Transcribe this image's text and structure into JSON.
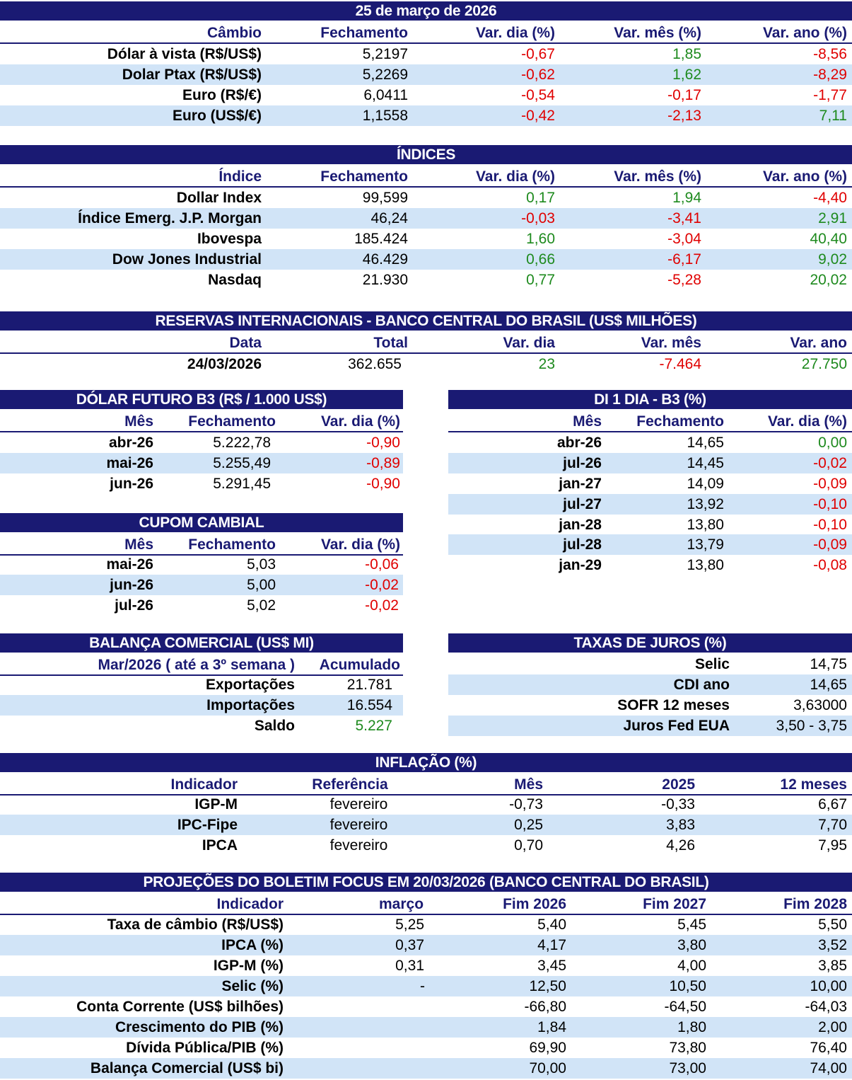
{
  "date_title": "25 de março de 2026",
  "cambio": {
    "headers": [
      "Câmbio",
      "Fechamento",
      "Var. dia (%)",
      "Var. mês (%)",
      "Var. ano (%)"
    ],
    "rows": [
      {
        "label": "Dólar à vista (R$/US$)",
        "fech": "5,2197",
        "dia": "-0,67",
        "mes": "1,85",
        "ano": "-8,56"
      },
      {
        "label": "Dolar Ptax (R$/US$)",
        "fech": "5,2269",
        "dia": "-0,62",
        "mes": "1,62",
        "ano": "-8,29"
      },
      {
        "label": "Euro (R$/€)",
        "fech": "6,0411",
        "dia": "-0,54",
        "mes": "-0,17",
        "ano": "-1,77"
      },
      {
        "label": "Euro (US$/€)",
        "fech": "1,1558",
        "dia": "-0,42",
        "mes": "-2,13",
        "ano": "7,11"
      }
    ]
  },
  "indices": {
    "title": "ÍNDICES",
    "headers": [
      "Índice",
      "Fechamento",
      "Var. dia (%)",
      "Var. mês (%)",
      "Var. ano (%)"
    ],
    "rows": [
      {
        "label": "Dollar Index",
        "fech": "99,599",
        "dia": "0,17",
        "mes": "1,94",
        "ano": "-4,40"
      },
      {
        "label": "Índice Emerg. J.P. Morgan",
        "fech": "46,24",
        "dia": "-0,03",
        "mes": "-3,41",
        "ano": "2,91"
      },
      {
        "label": "Ibovespa",
        "fech": "185.424",
        "dia": "1,60",
        "mes": "-3,04",
        "ano": "40,40"
      },
      {
        "label": "Dow Jones Industrial",
        "fech": "46.429",
        "dia": "0,66",
        "mes": "-6,17",
        "ano": "9,02"
      },
      {
        "label": "Nasdaq",
        "fech": "21.930",
        "dia": "0,77",
        "mes": "-5,28",
        "ano": "20,02"
      }
    ]
  },
  "reservas": {
    "title": "RESERVAS INTERNACIONAIS - BANCO CENTRAL DO BRASIL (US$ MILHÕES)",
    "headers": [
      "Data",
      "Total",
      "Var. dia",
      "Var. mês",
      "Var. ano"
    ],
    "row": {
      "data": "24/03/2026",
      "total": "362.655",
      "dia": "23",
      "mes": "-7.464",
      "ano": "27.750"
    }
  },
  "dolar_futuro": {
    "title": "DÓLAR FUTURO B3 (R$ / 1.000 US$)",
    "headers": [
      "Mês",
      "Fechamento",
      "Var. dia (%)"
    ],
    "rows": [
      {
        "mes": "abr-26",
        "fech": "5.222,78",
        "dia": "-0,90"
      },
      {
        "mes": "mai-26",
        "fech": "5.255,49",
        "dia": "-0,89"
      },
      {
        "mes": "jun-26",
        "fech": "5.291,45",
        "dia": "-0,90"
      }
    ]
  },
  "di": {
    "title": "DI 1 DIA - B3 (%)",
    "headers": [
      "Mês",
      "Fechamento",
      "Var. dia (%)"
    ],
    "rows": [
      {
        "mes": "abr-26",
        "fech": "14,65",
        "dia": "0,00"
      },
      {
        "mes": "jul-26",
        "fech": "14,45",
        "dia": "-0,02"
      },
      {
        "mes": "jan-27",
        "fech": "14,09",
        "dia": "-0,09"
      },
      {
        "mes": "jul-27",
        "fech": "13,92",
        "dia": "-0,10"
      },
      {
        "mes": "jan-28",
        "fech": "13,80",
        "dia": "-0,10"
      },
      {
        "mes": "jul-28",
        "fech": "13,79",
        "dia": "-0,09"
      },
      {
        "mes": "jan-29",
        "fech": "13,80",
        "dia": "-0,08"
      }
    ]
  },
  "cupom": {
    "title": "CUPOM CAMBIAL",
    "headers": [
      "Mês",
      "Fechamento",
      "Var. dia (%)"
    ],
    "rows": [
      {
        "mes": "mai-26",
        "fech": "5,03",
        "dia": "-0,06"
      },
      {
        "mes": "jun-26",
        "fech": "5,00",
        "dia": "-0,02"
      },
      {
        "mes": "jul-26",
        "fech": "5,02",
        "dia": "-0,02"
      }
    ]
  },
  "balanca": {
    "title": "BALANÇA COMERCIAL (US$ MI)",
    "headers": [
      "Mar/2026 ( até a 3º semana )",
      "Acumulado"
    ],
    "rows": [
      {
        "label": "Exportações",
        "valor": "21.781"
      },
      {
        "label": "Importações",
        "valor": "16.554"
      },
      {
        "label": "Saldo",
        "valor": "5.227"
      }
    ]
  },
  "juros": {
    "title": "TAXAS DE JUROS (%)",
    "rows": [
      {
        "label": "Selic",
        "valor": "14,75"
      },
      {
        "label": "CDI ano",
        "valor": "14,65"
      },
      {
        "label": "SOFR 12 meses",
        "valor": "3,63000"
      },
      {
        "label": "Juros Fed EUA",
        "valor": "3,50 - 3,75"
      }
    ]
  },
  "inflacao": {
    "title": "INFLAÇÃO (%)",
    "headers": [
      "Indicador",
      "Referência",
      "Mês",
      "2025",
      "12 meses"
    ],
    "rows": [
      {
        "label": "IGP-M",
        "ref": "fevereiro",
        "mes": "-0,73",
        "ano": "-0,33",
        "m12": "6,67"
      },
      {
        "label": "IPC-Fipe",
        "ref": "fevereiro",
        "mes": "0,25",
        "ano": "3,83",
        "m12": "7,70"
      },
      {
        "label": "IPCA",
        "ref": "fevereiro",
        "mes": "0,70",
        "ano": "4,26",
        "m12": "7,95"
      }
    ]
  },
  "focus": {
    "title": "PROJEÇÕES DO BOLETIM FOCUS EM 20/03/2026 (BANCO CENTRAL DO BRASIL)",
    "headers": [
      "Indicador",
      "março",
      "Fim 2026",
      "Fim 2027",
      "Fim 2028"
    ],
    "rows": [
      {
        "label": "Taxa de câmbio (R$/US$)",
        "marco": "5,25",
        "f26": "5,40",
        "f27": "5,45",
        "f28": "5,50"
      },
      {
        "label": "IPCA (%)",
        "marco": "0,37",
        "f26": "4,17",
        "f27": "3,80",
        "f28": "3,52"
      },
      {
        "label": "IGP-M (%)",
        "marco": "0,31",
        "f26": "3,45",
        "f27": "4,00",
        "f28": "3,85"
      },
      {
        "label": "Selic (%)",
        "marco": "-",
        "f26": "12,50",
        "f27": "10,50",
        "f28": "10,00"
      },
      {
        "label": "Conta Corrente (US$ bilhões)",
        "marco": "",
        "f26": "-66,80",
        "f27": "-64,50",
        "f28": "-64,03"
      },
      {
        "label": "Crescimento do PIB (%)",
        "marco": "",
        "f26": "1,84",
        "f27": "1,80",
        "f28": "2,00"
      },
      {
        "label": "Dívida Pública/PIB (%)",
        "marco": "",
        "f26": "69,90",
        "f27": "73,80",
        "f28": "76,40"
      },
      {
        "label": "Balança Comercial (US$ bi)",
        "marco": "",
        "f26": "70,00",
        "f27": "73,00",
        "f28": "74,00"
      }
    ]
  }
}
